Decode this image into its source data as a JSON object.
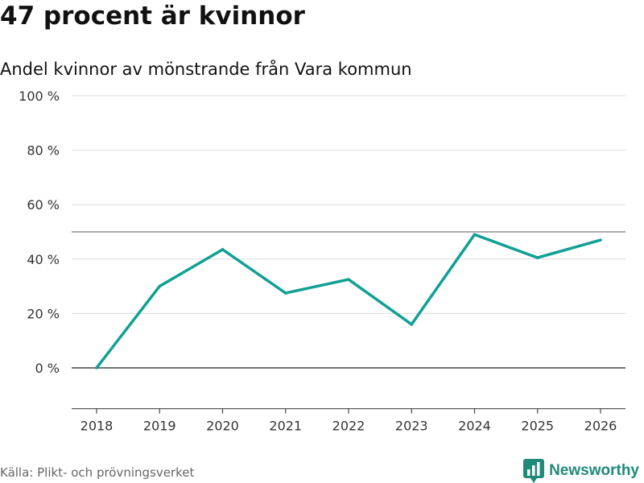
{
  "header": {
    "title": "47 procent är kvinnor",
    "subtitle": "Andel kvinnor av mönstrande från Vara kommun"
  },
  "footer": {
    "source": "Källa: Plikt- och prövningsverket",
    "brand": "Newsworthy",
    "brand_icon": "bar-chart-logo-icon"
  },
  "colors": {
    "line": "#11a094",
    "grid": "#dddddd",
    "axis": "#444444",
    "brand": "#1f8a7a"
  },
  "chart_data": {
    "type": "line",
    "title": "47 procent är kvinnor",
    "subtitle": "Andel kvinnor av mönstrande från Vara kommun",
    "xlabel": "",
    "ylabel": "",
    "x": [
      2018,
      2019,
      2020,
      2021,
      2022,
      2023,
      2024,
      2025,
      2026
    ],
    "series": [
      {
        "name": "Andel kvinnor",
        "values": [
          0,
          30,
          43.5,
          27.5,
          32.5,
          16,
          49,
          40.5,
          47
        ]
      }
    ],
    "ylim": [
      -15,
      100
    ],
    "yticks": [
      0,
      20,
      40,
      60,
      80,
      100
    ],
    "ytick_labels": [
      "0 %",
      "20 %",
      "40 %",
      "60 %",
      "80 %",
      "100 %"
    ],
    "xtick_labels": [
      "2018",
      "2019",
      "2020",
      "2021",
      "2022",
      "2023",
      "2024",
      "2025",
      "2026"
    ],
    "reference_line": 50,
    "grid": true
  }
}
